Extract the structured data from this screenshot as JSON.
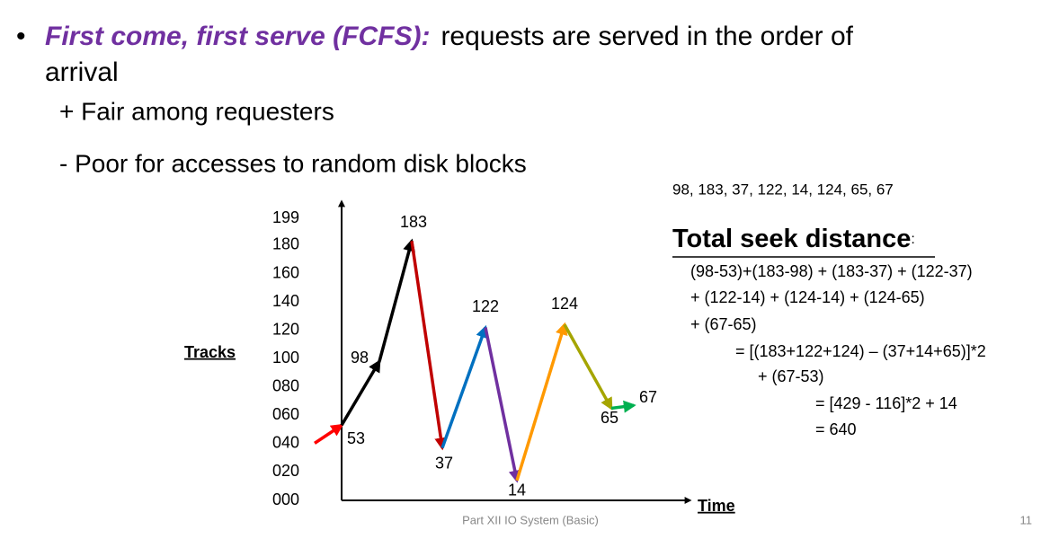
{
  "bullet": {
    "term": "First come, first serve (FCFS):",
    "text_lines": [
      "requests are served in the order of",
      "arrival"
    ],
    "pros": "+ Fair among requesters",
    "cons": "- Poor for accesses to random disk blocks"
  },
  "chart_data": {
    "type": "line",
    "y_label": "Tracks",
    "x_label": "Time",
    "values": [
      53,
      98,
      183,
      37,
      122,
      14,
      124,
      65,
      67
    ],
    "ylim": [
      0,
      199
    ],
    "yticks": [
      {
        "value": 0,
        "label": "000"
      },
      {
        "value": 20,
        "label": "020"
      },
      {
        "value": 40,
        "label": "040"
      },
      {
        "value": 60,
        "label": "060"
      },
      {
        "value": 80,
        "label": "080"
      },
      100,
      120,
      140,
      160,
      180,
      199
    ],
    "start_color": "#ff0000",
    "segment_colors": [
      "#000000",
      "#000000",
      "#c00000",
      "#0070c0",
      "#7030a0",
      "#ff9900",
      "#a5a500",
      "#00b050"
    ]
  },
  "calculation": {
    "request_queue": "98, 183, 37, 122, 14, 124, 65, 67",
    "heading": "Total seek distance",
    "heading_suffix": ":",
    "lines": [
      "(98-53)+(183-98) + (183-37) + (122-37)",
      "+ (122-14) + (124-14) + (124-65)",
      "+ (67-65)",
      "= [(183+122+124) – (37+14+65)]*2",
      "+ (67-53)",
      "= [429 - 116]*2 + 14",
      "= 640"
    ]
  },
  "footer": {
    "text": "Part XII IO System (Basic)",
    "page": "11"
  }
}
